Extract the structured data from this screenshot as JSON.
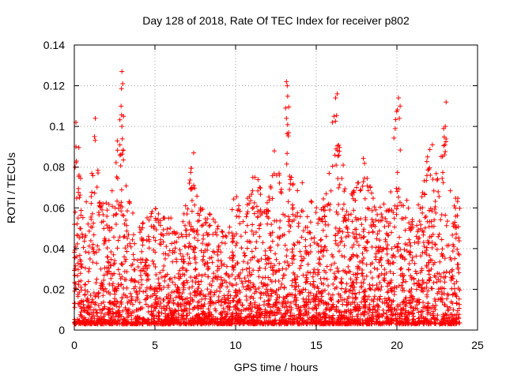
{
  "chart_data": {
    "type": "scatter",
    "title": "Day 128 of 2018, Rate Of TEC Index for receiver p802",
    "xlabel": "GPS time / hours",
    "ylabel": "ROTI / TECUs",
    "xlim": [
      0,
      25
    ],
    "ylim": [
      0,
      0.14
    ],
    "grid": true,
    "marker": "+",
    "series_color": "#ff0000",
    "x_ticks": [
      "0",
      "5",
      "10",
      "15",
      "20",
      "25"
    ],
    "y_ticks": [
      "0",
      "0.02",
      "0.04",
      "0.06",
      "0.08",
      "0.1",
      "0.12",
      "0.14"
    ],
    "x_tick_values": [
      0,
      5,
      10,
      15,
      20,
      25
    ],
    "y_tick_values": [
      0,
      0.02,
      0.04,
      0.06,
      0.08,
      0.1,
      0.12,
      0.14
    ],
    "data_range_hours": [
      0,
      23.9
    ],
    "envelope": {
      "x": [
        0,
        0.2,
        0.5,
        1.0,
        1.3,
        1.6,
        2.0,
        2.5,
        2.9,
        3.1,
        3.5,
        4.0,
        4.5,
        5.0,
        5.5,
        6.0,
        6.5,
        7.0,
        7.3,
        7.8,
        8.3,
        9.0,
        9.5,
        10.0,
        10.5,
        11.0,
        11.4,
        12.0,
        12.5,
        13.0,
        13.2,
        13.6,
        14.0,
        14.5,
        15.0,
        15.5,
        16.0,
        16.2,
        16.6,
        17.0,
        17.5,
        17.9,
        18.5,
        19.0,
        19.5,
        20.0,
        20.3,
        20.7,
        21.0,
        21.5,
        22.0,
        22.5,
        23.0,
        23.4,
        23.9
      ],
      "y": [
        0.06,
        0.1,
        0.06,
        0.07,
        0.1,
        0.06,
        0.065,
        0.07,
        0.125,
        0.075,
        0.06,
        0.05,
        0.055,
        0.06,
        0.055,
        0.055,
        0.045,
        0.065,
        0.087,
        0.06,
        0.058,
        0.05,
        0.045,
        0.07,
        0.055,
        0.075,
        0.075,
        0.062,
        0.088,
        0.06,
        0.12,
        0.08,
        0.075,
        0.065,
        0.06,
        0.065,
        0.085,
        0.115,
        0.09,
        0.065,
        0.07,
        0.085,
        0.065,
        0.06,
        0.065,
        0.112,
        0.078,
        0.06,
        0.055,
        0.065,
        0.09,
        0.075,
        0.1,
        0.06,
        0.07
      ]
    },
    "spike_points": [
      {
        "x": 0.1,
        "y": 0.102
      },
      {
        "x": 0.1,
        "y": 0.09
      },
      {
        "x": 0.05,
        "y": 0.08
      },
      {
        "x": 1.3,
        "y": 0.104
      },
      {
        "x": 1.25,
        "y": 0.095
      },
      {
        "x": 2.95,
        "y": 0.127
      },
      {
        "x": 3.0,
        "y": 0.121
      },
      {
        "x": 2.9,
        "y": 0.11
      },
      {
        "x": 3.05,
        "y": 0.105
      },
      {
        "x": 2.95,
        "y": 0.1
      },
      {
        "x": 7.4,
        "y": 0.087
      },
      {
        "x": 7.3,
        "y": 0.07
      },
      {
        "x": 12.4,
        "y": 0.088
      },
      {
        "x": 13.15,
        "y": 0.122
      },
      {
        "x": 13.2,
        "y": 0.12
      },
      {
        "x": 13.1,
        "y": 0.109
      },
      {
        "x": 13.15,
        "y": 0.104
      },
      {
        "x": 16.3,
        "y": 0.116
      },
      {
        "x": 16.2,
        "y": 0.114
      },
      {
        "x": 16.1,
        "y": 0.105
      },
      {
        "x": 16.0,
        "y": 0.102
      },
      {
        "x": 20.1,
        "y": 0.114
      },
      {
        "x": 20.2,
        "y": 0.11
      },
      {
        "x": 20.15,
        "y": 0.104
      },
      {
        "x": 22.2,
        "y": 0.091
      },
      {
        "x": 23.05,
        "y": 0.112
      },
      {
        "x": 23.0,
        "y": 0.1
      },
      {
        "x": 22.9,
        "y": 0.099
      }
    ]
  }
}
